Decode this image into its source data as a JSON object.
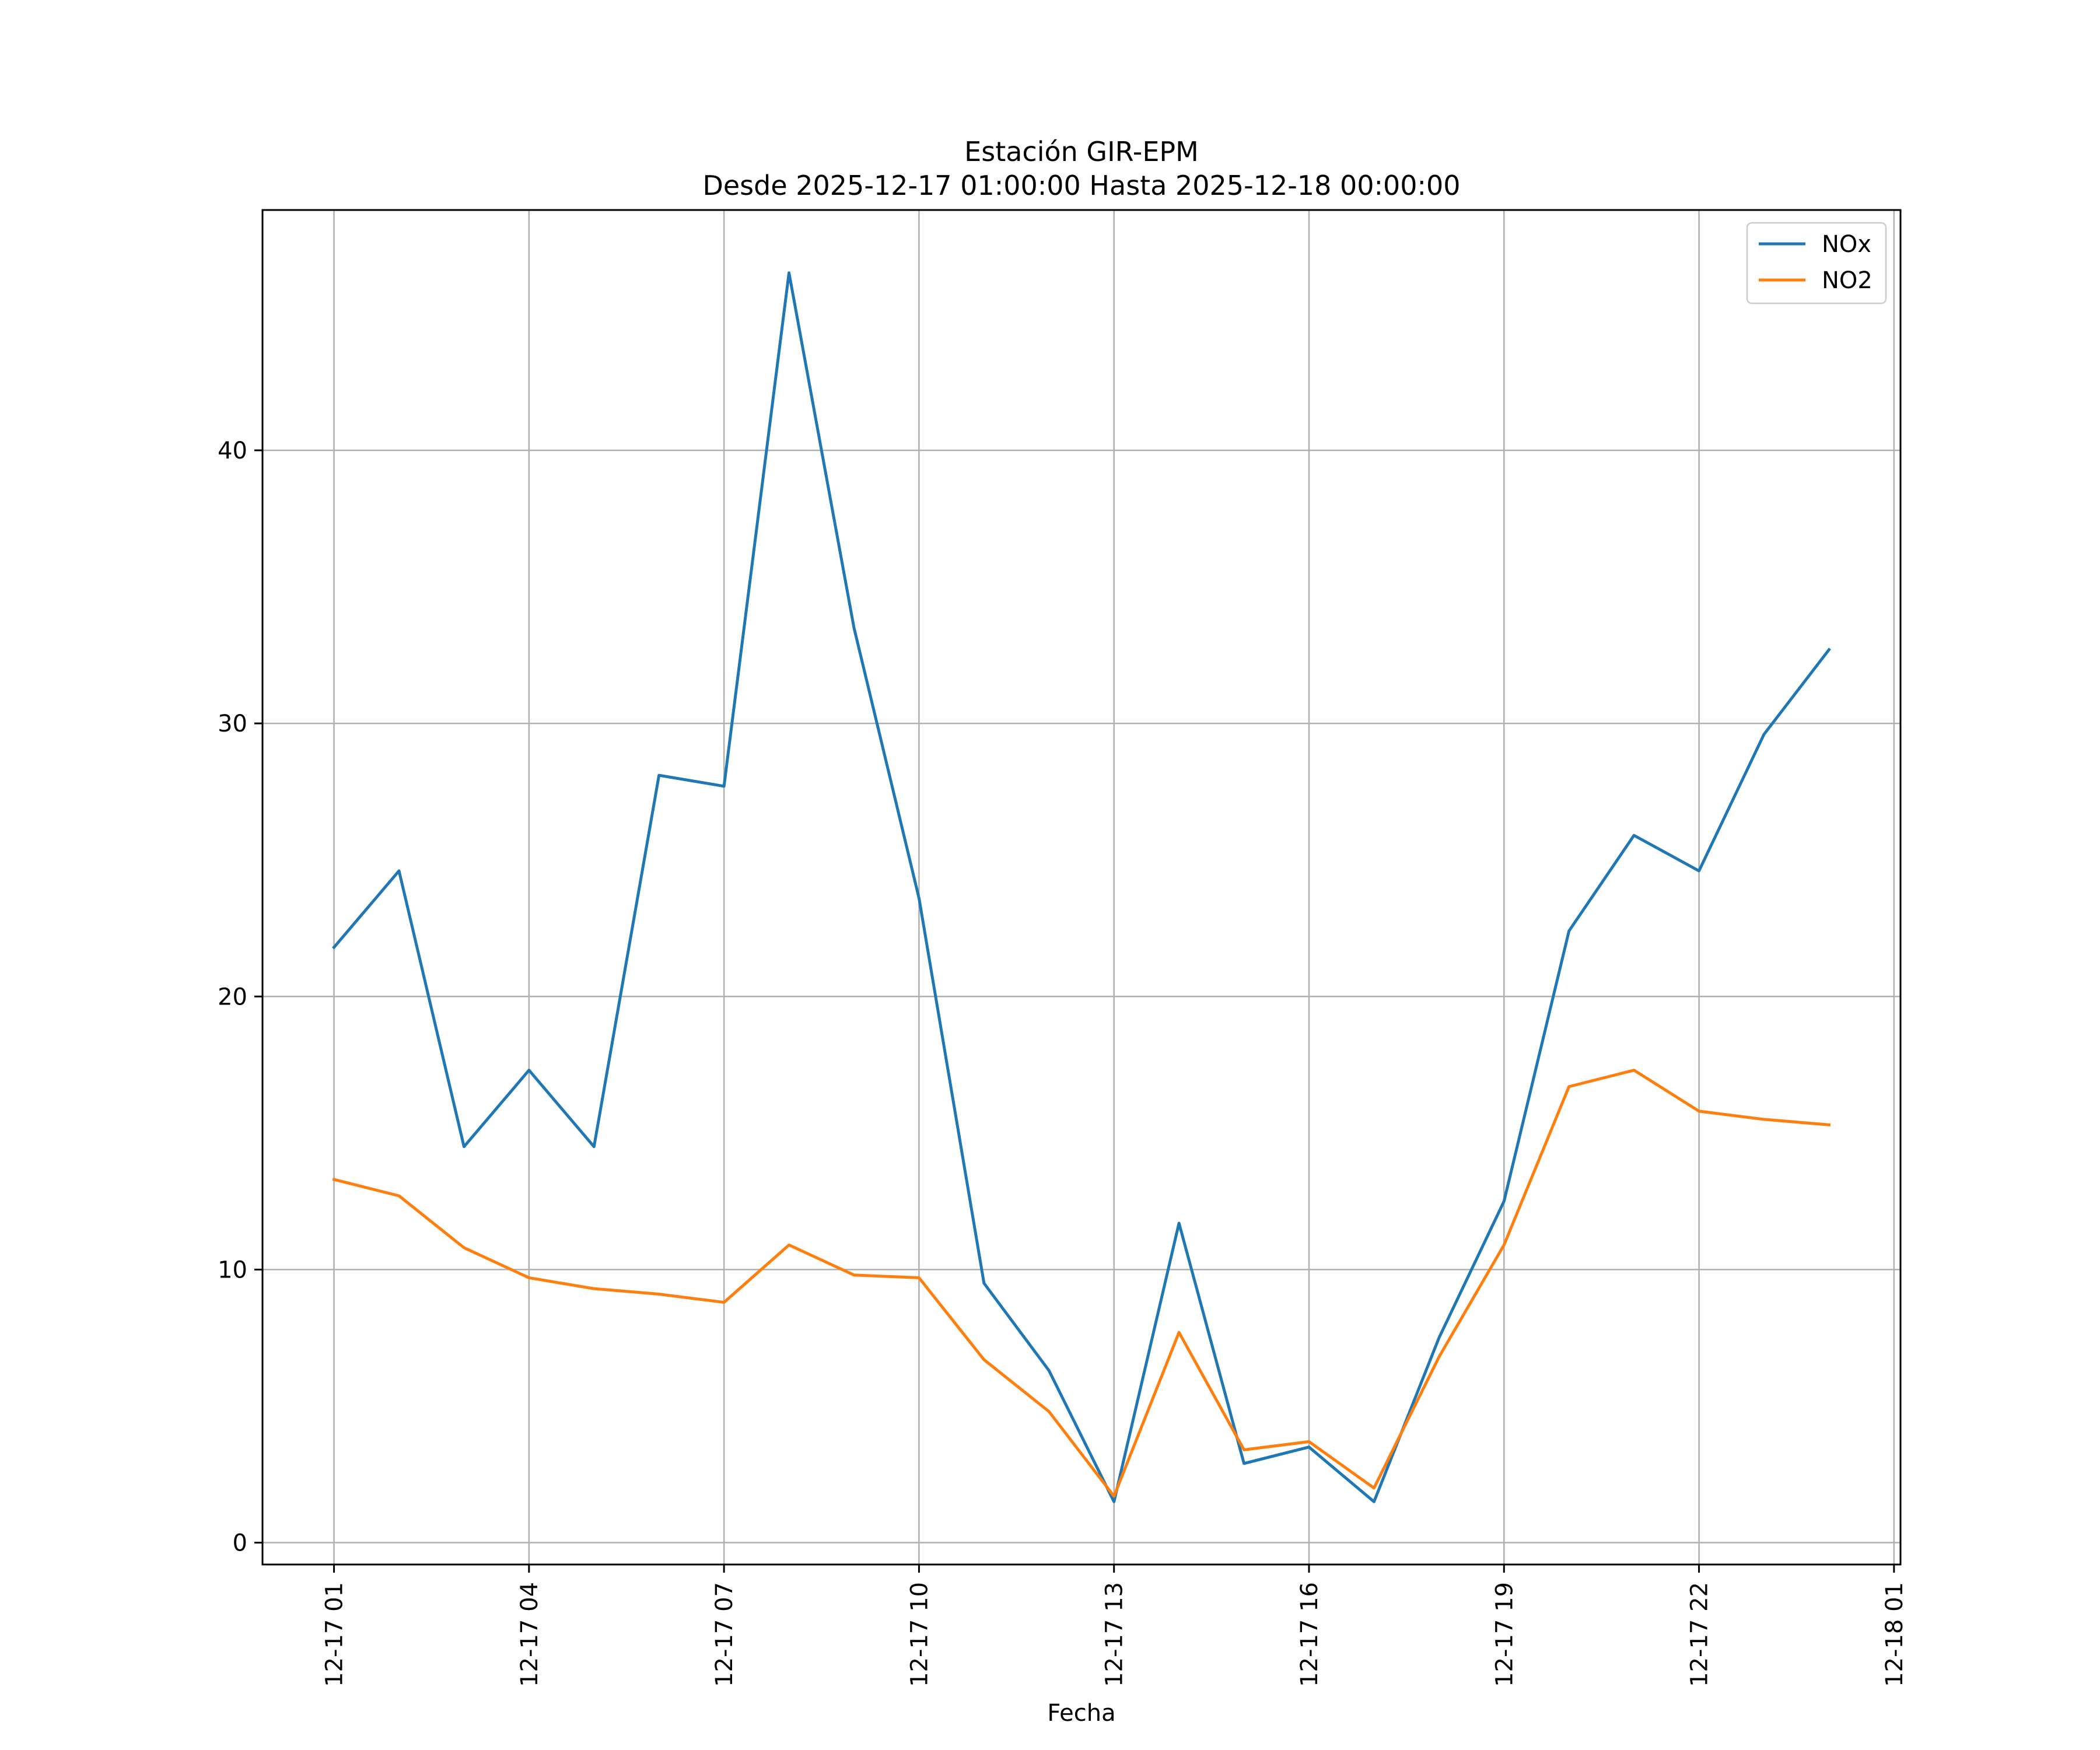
{
  "chart_data": {
    "type": "line",
    "title": "Estación GIR-EPM",
    "subtitle": "Desde 2025-12-17 01:00:00 Hasta 2025-12-18 00:00:00",
    "xlabel": "Fecha",
    "ylabel": "",
    "grid": true,
    "legend_position": "top-right",
    "x": [
      1,
      2,
      3,
      4,
      5,
      6,
      7,
      8,
      9,
      10,
      11,
      12,
      13,
      14,
      15,
      16,
      17,
      18,
      19,
      20,
      21,
      22,
      23,
      24
    ],
    "xlim": [
      -0.1,
      25.1
    ],
    "ylim": [
      -0.8,
      48.8
    ],
    "x_ticks": [
      1,
      4,
      7,
      10,
      13,
      16,
      19,
      22,
      25
    ],
    "x_tick_labels": [
      "12-17 01",
      "12-17 04",
      "12-17 07",
      "12-17 10",
      "12-17 13",
      "12-17 16",
      "12-17 19",
      "12-17 22",
      "12-18 01"
    ],
    "y_ticks": [
      0,
      10,
      20,
      30,
      40
    ],
    "y_tick_labels": [
      "0",
      "10",
      "20",
      "30",
      "40"
    ],
    "series": [
      {
        "name": "NOx",
        "color": "#1f77b4",
        "values": [
          21.8,
          24.6,
          14.5,
          17.3,
          14.5,
          28.1,
          27.7,
          46.5,
          33.5,
          23.6,
          9.5,
          6.3,
          1.5,
          11.7,
          2.9,
          3.5,
          1.5,
          7.5,
          12.5,
          22.4,
          25.9,
          24.6,
          29.6,
          32.7
        ]
      },
      {
        "name": "NO2",
        "color": "#ff7f0e",
        "values": [
          13.3,
          12.7,
          10.8,
          9.7,
          9.3,
          9.1,
          8.8,
          10.9,
          9.8,
          9.7,
          6.7,
          4.8,
          1.7,
          7.7,
          3.4,
          3.7,
          2.0,
          6.8,
          10.9,
          16.7,
          17.3,
          15.8,
          15.5,
          15.3
        ]
      }
    ]
  }
}
